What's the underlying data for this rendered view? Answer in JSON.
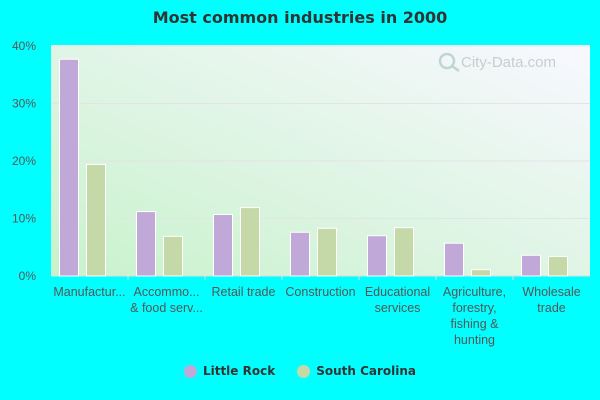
{
  "chart_data": {
    "type": "bar",
    "title": "Most common industries in 2000",
    "categories": [
      [
        "Manufactur..."
      ],
      [
        "Accommo...",
        "& food serv..."
      ],
      [
        "Retail trade"
      ],
      [
        "Construction"
      ],
      [
        "Educational",
        "services"
      ],
      [
        "Agriculture,",
        "forestry,",
        "fishing &",
        "hunting"
      ],
      [
        "Wholesale",
        "trade"
      ]
    ],
    "series": [
      {
        "name": "Little Rock",
        "color": "#c0a8d9",
        "values": [
          37.7,
          11.2,
          10.7,
          7.6,
          7.0,
          5.7,
          3.6
        ]
      },
      {
        "name": "South Carolina",
        "color": "#c5d9a8",
        "values": [
          19.4,
          6.9,
          11.9,
          8.3,
          8.4,
          1.1,
          3.4
        ]
      }
    ],
    "ylim": [
      0,
      40
    ],
    "yticks": [
      "0%",
      "10%",
      "20%",
      "30%",
      "40%"
    ],
    "grid": true,
    "legend": "bottom",
    "watermark": "City-Data.com"
  }
}
